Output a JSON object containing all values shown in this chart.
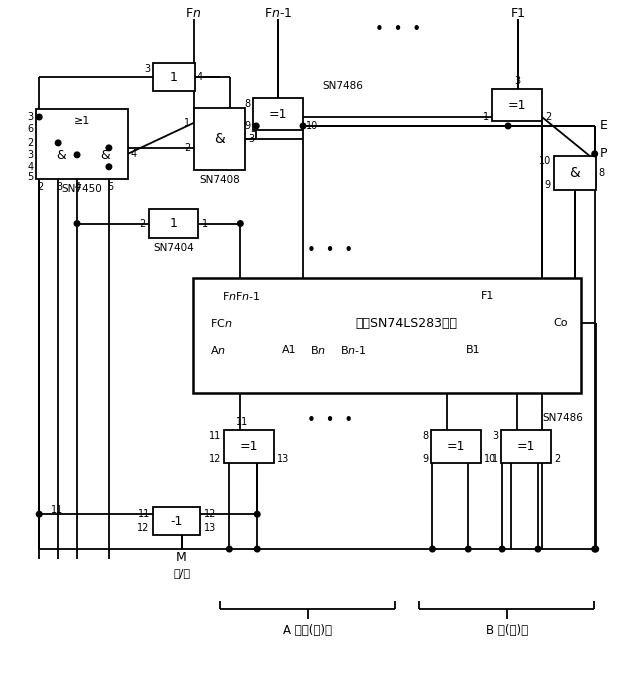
{
  "bg": "#ffffff",
  "lc": "#000000",
  "figsize": [
    6.17,
    6.82
  ],
  "dpi": 100,
  "labels": {
    "Fn": "F$n$",
    "Fn1": "F$n$-1",
    "F1": "F1",
    "SN7486_top": "SN7486",
    "SN7486_bot": "SN7486",
    "SN7450": "SN7450",
    "SN7408": "SN7408",
    "SN7404": "SN7404",
    "ALU_line1": "F$n$F$n$-1",
    "ALU_dashes1": "- - - - - - - - - -",
    "ALU_F1": "F1",
    "ALU_FCn": "FC$n$",
    "ALU_center": "多块SN74LS283级联",
    "ALU_Co": "Co",
    "ALU_An": "A$n$",
    "ALU_dashes2": "- -",
    "ALU_A1": "A1",
    "ALU_Bn": "B$n$",
    "ALU_Bn1": "B$n$-1",
    "ALU_dashes3": "- -",
    "ALU_B1": "B1",
    "E": "E",
    "P": "P",
    "M": "M",
    "add_sub": "加/减",
    "A_label": "A 被加(减)数",
    "B_label": "B 加(减)数",
    "dots": "•  •  •"
  }
}
